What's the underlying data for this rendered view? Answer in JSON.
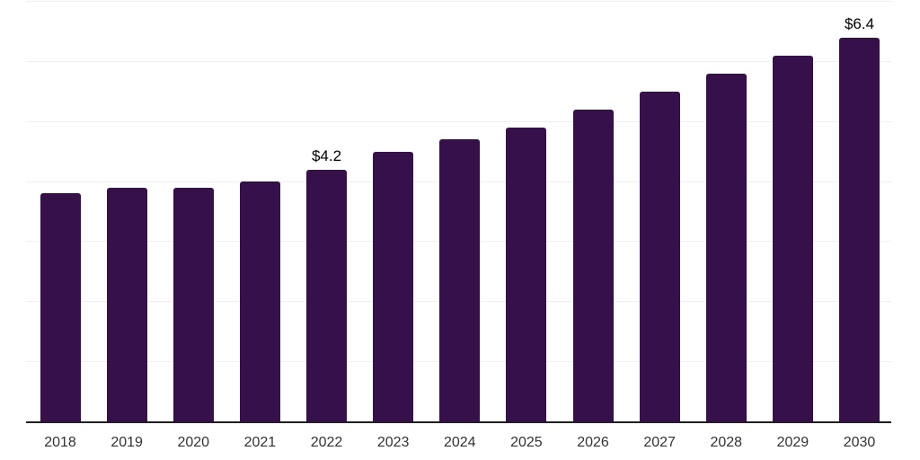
{
  "chart_data": {
    "type": "bar",
    "title": "",
    "xlabel": "",
    "ylabel": "",
    "categories": [
      "2018",
      "2019",
      "2020",
      "2021",
      "2022",
      "2023",
      "2024",
      "2025",
      "2026",
      "2027",
      "2028",
      "2029",
      "2030"
    ],
    "values": [
      3.8,
      3.9,
      3.9,
      4.0,
      4.2,
      4.5,
      4.7,
      4.9,
      5.2,
      5.5,
      5.8,
      6.1,
      6.4
    ],
    "value_unit": "USD (billions implied by $ labels)",
    "annotations": [
      {
        "category": "2022",
        "text": "$4.2"
      },
      {
        "category": "2030",
        "text": "$6.4"
      }
    ],
    "ylim": [
      0,
      7
    ],
    "gridline_step": 1,
    "grid": true,
    "legend_position": "none",
    "colors": {
      "bar": "#351049",
      "gridline": "#f0f0f0",
      "axis_line": "#1f1f1f",
      "tick_label": "#333333",
      "annotation_label": "#000000",
      "background": "#ffffff"
    }
  }
}
